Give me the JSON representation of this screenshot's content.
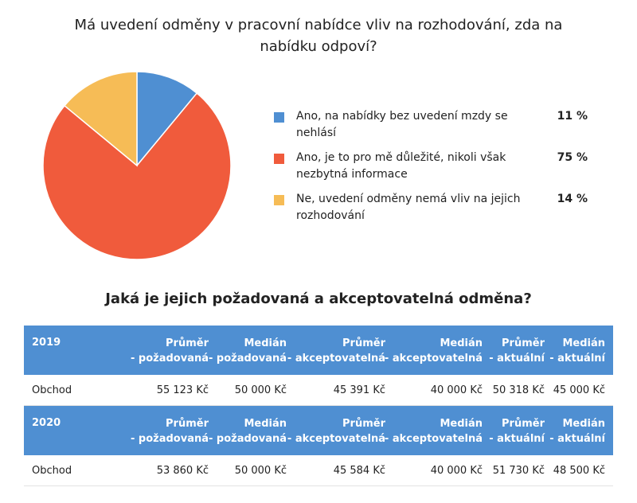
{
  "chart_data": {
    "type": "pie",
    "title": "Má uvedení odměny v pracovní nabídce vliv na rozhodování, zda na nabídku odpoví?",
    "slices": [
      {
        "label": "Ano, na nabídky bez uvedení mzdy se nehlásí",
        "value": 11,
        "display": "11 %",
        "color": "#4f8fd2"
      },
      {
        "label": "Ano, je to pro mě důležité, nikoli však nezbytná informace",
        "value": 75,
        "display": "75 %",
        "color": "#f05b3c"
      },
      {
        "label": "Ne, uvedení odměny nemá vliv na jejich rozhodování",
        "value": 14,
        "display": "14 %",
        "color": "#f6bc56"
      }
    ],
    "legend": "right"
  },
  "table": {
    "title": "Jaká je jejich požadovaná a akceptovatelná odměna?",
    "headers": [
      [
        "Průměr",
        "- požadovaná"
      ],
      [
        "Medián",
        "- požadovaná"
      ],
      [
        "Průměr",
        "- akceptovatelná"
      ],
      [
        "Medián",
        "- akceptovatelná"
      ],
      [
        "Průměr",
        "- aktuální"
      ],
      [
        "Medián",
        "- aktuální"
      ]
    ],
    "groups": [
      {
        "year": "2019",
        "row_label": "Obchod",
        "values": [
          "55 123 Kč",
          "50 000 Kč",
          "45 391 Kč",
          "40 000 Kč",
          "50 318 Kč",
          "45 000 Kč"
        ]
      },
      {
        "year": "2020",
        "row_label": "Obchod",
        "values": [
          "53 860 Kč",
          "50 000 Kč",
          "45 584 Kč",
          "40 000 Kč",
          "51 730 Kč",
          "48 500 Kč"
        ]
      }
    ]
  }
}
